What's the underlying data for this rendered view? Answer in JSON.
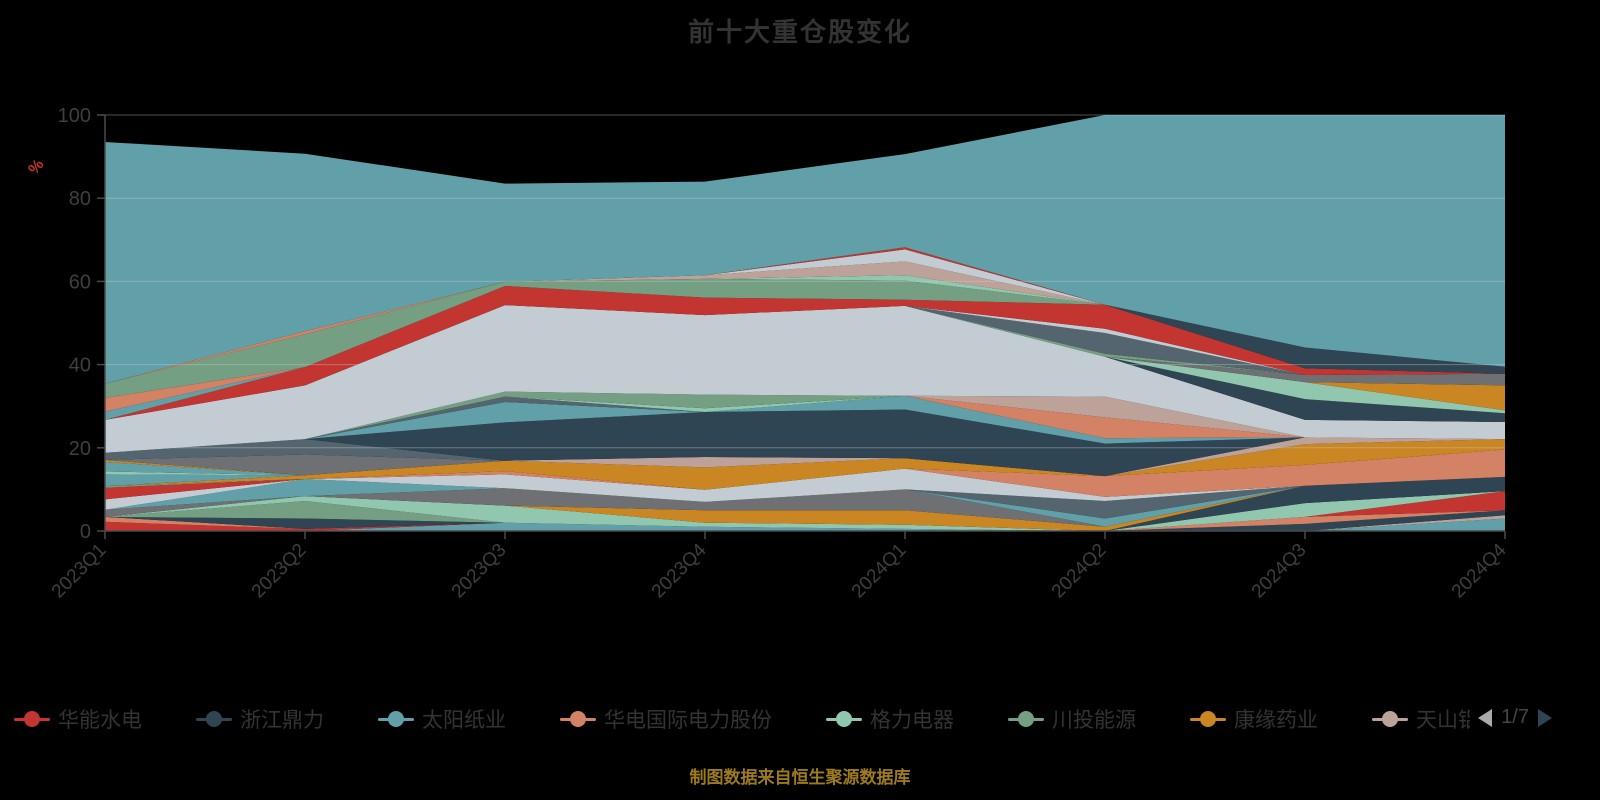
{
  "title": "前十大重仓股变化",
  "footer_note": "制图数据来自恒生聚源数据库",
  "colors": {
    "background": "#000000",
    "title_text": "#333333",
    "axis_text": "#3f3f3f",
    "axis_line": "#4a4a4a",
    "grid_line": "#cccccc",
    "y_unit_text": "#c23531",
    "footer_text": "#9c7a1e",
    "legend_text": "#333333",
    "pager_text": "#454545",
    "pager_prev": "#aaaaaa",
    "pager_next": "#2f4554"
  },
  "y_axis": {
    "unit": "%",
    "ticks": [
      "0",
      "20",
      "40",
      "60",
      "80",
      "100"
    ],
    "min": 0,
    "max": 100
  },
  "legend": {
    "items": [
      {
        "label": "华能水电",
        "color": "#c23531"
      },
      {
        "label": "浙江鼎力",
        "color": "#2f4554"
      },
      {
        "label": "太阳纸业",
        "color": "#61a0a8"
      },
      {
        "label": "华电国际电力股份",
        "color": "#d48265"
      },
      {
        "label": "格力电器",
        "color": "#91c7ae"
      },
      {
        "label": "川投能源",
        "color": "#749f83"
      },
      {
        "label": "康缘药业",
        "color": "#ca8622"
      },
      {
        "label": "天山铝业",
        "color": "#bda29a"
      }
    ],
    "pager": {
      "text": "1/7"
    }
  },
  "chart_data": {
    "type": "area",
    "stacked": true,
    "title": "前十大重仓股变化",
    "x_categories": [
      "2023Q1",
      "2023Q2",
      "2023Q3",
      "2023Q4",
      "2024Q1",
      "2024Q2",
      "2024Q3",
      "2024Q4"
    ],
    "ylabel": "%",
    "ylim": [
      0,
      100
    ],
    "grid": true,
    "legend_position": "bottom",
    "stack_totals": [
      93.5,
      90.7,
      83.5,
      84.0,
      90.6,
      100,
      100,
      100
    ],
    "series": [
      {
        "color": "#61a0a8",
        "values": [
          0,
          0,
          2.0,
          1.0,
          0.5,
          0,
          0,
          3.0
        ]
      },
      {
        "color": "#bda29a",
        "values": [
          0,
          0,
          0,
          0,
          0,
          0,
          0,
          0.8
        ]
      },
      {
        "color": "#c23531",
        "values": [
          2.2,
          0.5,
          0,
          0,
          0,
          0,
          0,
          0
        ]
      },
      {
        "color": "#d48265",
        "values": [
          1.2,
          0,
          0,
          0,
          0,
          0,
          0,
          0
        ]
      },
      {
        "color": "#2f4554",
        "values": [
          0,
          2.5,
          0,
          0,
          0,
          0,
          1.7,
          1.2
        ]
      },
      {
        "color": "#d48265",
        "values": [
          0,
          0,
          0,
          0,
          0,
          0,
          1.7,
          0
        ]
      },
      {
        "color": "#c23531",
        "values": [
          0,
          0,
          0,
          0,
          0,
          0,
          0,
          4.6
        ]
      },
      {
        "color": "#91c7ae",
        "values": [
          0,
          0,
          0,
          0,
          0,
          0,
          3.3,
          0
        ]
      },
      {
        "color": "#2f4554",
        "values": [
          0,
          0,
          0,
          0,
          0,
          0,
          4.2,
          3.4
        ]
      },
      {
        "color": "#749f83",
        "values": [
          0,
          4.2,
          0,
          0,
          0,
          0,
          0,
          0
        ]
      },
      {
        "color": "#91c7ae",
        "values": [
          0,
          1.2,
          4.1,
          1.0,
          1.0,
          0,
          0,
          0
        ]
      },
      {
        "color": "#ca8622",
        "values": [
          0,
          0,
          0,
          3.0,
          3.5,
          1.0,
          0,
          0
        ]
      },
      {
        "color": "#6e7074",
        "values": [
          1.7,
          0,
          4.2,
          2.0,
          5.0,
          0,
          0,
          0
        ]
      },
      {
        "color": "#61a0a8",
        "values": [
          0,
          4.1,
          0,
          0,
          0,
          2.0,
          0,
          0
        ]
      },
      {
        "color": "#546570",
        "values": [
          0,
          0,
          0,
          0,
          0,
          4.2,
          0,
          0
        ]
      },
      {
        "color": "#c4ccd3",
        "values": [
          2.5,
          0,
          3.3,
          2.9,
          5.0,
          1.0,
          0,
          0
        ]
      },
      {
        "color": "#d48265",
        "values": [
          0,
          0,
          0.8,
          0,
          0,
          5.0,
          5.0,
          6.6
        ]
      },
      {
        "color": "#c23531",
        "values": [
          2.8,
          0,
          0,
          0,
          0,
          0,
          0,
          0
        ]
      },
      {
        "color": "#749f83",
        "values": [
          0.4,
          0,
          0,
          0,
          0,
          0,
          0,
          0
        ]
      },
      {
        "color": "#ca8622",
        "values": [
          0,
          0.9,
          2.5,
          5.4,
          2.5,
          0,
          5.0,
          2.5
        ]
      },
      {
        "color": "#61a0a8",
        "values": [
          2.8,
          0,
          0,
          0,
          0,
          0,
          0,
          0
        ]
      },
      {
        "color": "#91c7ae",
        "values": [
          0.7,
          0,
          0,
          0,
          0,
          0,
          0,
          0
        ]
      },
      {
        "color": "#61a0a8",
        "values": [
          2.3,
          0,
          0,
          0,
          0,
          0,
          0,
          0
        ]
      },
      {
        "color": "#ca8622",
        "values": [
          0.5,
          0,
          0,
          0,
          0,
          0,
          0,
          0
        ]
      },
      {
        "color": "#bda29a",
        "values": [
          0,
          0,
          0,
          2.5,
          0,
          0,
          1.6,
          0
        ]
      },
      {
        "color": "#6e7074",
        "values": [
          0,
          5.0,
          0,
          0,
          0,
          0,
          0,
          0
        ]
      },
      {
        "color": "#546570",
        "values": [
          1.7,
          3.7,
          0,
          0,
          0,
          0,
          0,
          0
        ]
      },
      {
        "color": "#2f4554",
        "values": [
          0,
          0,
          9.2,
          10.8,
          11.7,
          7.8,
          0,
          0
        ]
      },
      {
        "color": "#61a0a8",
        "values": [
          0,
          0,
          4.9,
          0,
          3.3,
          1.3,
          0,
          0
        ]
      },
      {
        "color": "#546570",
        "values": [
          0,
          0,
          1.3,
          0,
          0,
          0,
          0,
          0
        ]
      },
      {
        "color": "#91c7ae",
        "values": [
          0,
          0,
          0,
          0.9,
          0,
          0,
          0,
          0
        ]
      },
      {
        "color": "#749f83",
        "values": [
          0,
          0,
          1.2,
          3.3,
          0,
          0,
          0,
          0
        ]
      },
      {
        "color": "#d48265",
        "values": [
          0,
          0,
          0,
          0,
          0,
          5.0,
          0,
          0
        ]
      },
      {
        "color": "#bda29a",
        "values": [
          0,
          0,
          0,
          0,
          0,
          5.0,
          0,
          0
        ]
      },
      {
        "color": "#c4ccd3",
        "values": [
          7.9,
          12.9,
          20.8,
          19.1,
          21.6,
          9.6,
          4.2,
          4.1
        ]
      },
      {
        "color": "#2f4554",
        "values": [
          0,
          0,
          0,
          0,
          0,
          0,
          5.0,
          2.1
        ]
      },
      {
        "color": "#91c7ae",
        "values": [
          0,
          0,
          0,
          0,
          0,
          0,
          4.1,
          0.7
        ]
      },
      {
        "color": "#ca8622",
        "values": [
          0,
          0,
          0,
          0,
          0,
          0,
          0,
          6.0
        ]
      },
      {
        "color": "#6e7074",
        "values": [
          0,
          0,
          0,
          0,
          0,
          0,
          1.7,
          2.8
        ]
      },
      {
        "color": "#749f83",
        "values": [
          0,
          0,
          0,
          0,
          0,
          0.7,
          0,
          0
        ]
      },
      {
        "color": "#546570",
        "values": [
          0,
          0,
          0,
          0,
          0,
          5.0,
          0,
          0
        ]
      },
      {
        "color": "#c4ccd3",
        "values": [
          0,
          0,
          0,
          0,
          0,
          1.0,
          0,
          0
        ]
      },
      {
        "color": "#c23531",
        "values": [
          0,
          4.4,
          4.6,
          4.2,
          1.5,
          5.8,
          1.6,
          0
        ]
      },
      {
        "color": "#2f4554",
        "values": [
          0,
          0,
          0,
          0,
          0,
          0,
          5.0,
          1.7
        ]
      },
      {
        "color": "#61a0a8",
        "values": [
          2.0,
          0,
          0,
          0,
          0,
          0,
          0,
          0
        ]
      },
      {
        "color": "#d48265",
        "values": [
          3.3,
          0,
          0,
          0,
          0,
          0,
          0,
          0
        ]
      },
      {
        "color": "#749f83",
        "values": [
          3.4,
          7.9,
          1.0,
          4.5,
          4.6,
          0,
          0,
          0
        ]
      },
      {
        "color": "#d48265",
        "values": [
          0,
          0.7,
          0,
          0,
          0,
          0,
          0,
          0
        ]
      },
      {
        "color": "#91c7ae",
        "values": [
          0,
          0,
          0,
          0,
          1.3,
          0,
          0,
          0
        ]
      },
      {
        "color": "#bda29a",
        "values": [
          0,
          0,
          0,
          0.9,
          3.3,
          0,
          0,
          0
        ]
      },
      {
        "color": "#c4ccd3",
        "values": [
          0,
          0,
          0,
          0,
          2.9,
          0,
          0,
          0
        ]
      },
      {
        "color": "#c23531",
        "values": [
          0,
          0,
          0,
          0,
          0.5,
          0,
          0,
          0
        ]
      },
      {
        "color": "#61a0a8",
        "values": [
          58.1,
          42.7,
          23.6,
          22.5,
          22.4,
          45.6,
          55.9,
          60.5
        ]
      }
    ]
  }
}
